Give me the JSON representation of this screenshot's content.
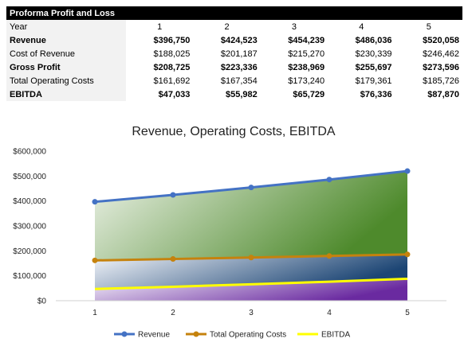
{
  "table": {
    "title": "Proforma Profit and Loss",
    "header_label": "Year",
    "years": [
      "1",
      "2",
      "3",
      "4",
      "5"
    ],
    "rows": [
      {
        "label": "Revenue",
        "bold": true,
        "values": [
          "$396,750",
          "$424,523",
          "$454,239",
          "$486,036",
          "$520,058"
        ]
      },
      {
        "label": "Cost of Revenue",
        "bold": false,
        "values": [
          "$188,025",
          "$201,187",
          "$215,270",
          "$230,339",
          "$246,462"
        ]
      },
      {
        "label": "Gross Profit",
        "bold": true,
        "values": [
          "$208,725",
          "$223,336",
          "$238,969",
          "$255,697",
          "$273,596"
        ]
      },
      {
        "label": "Total Operating Costs",
        "bold": false,
        "values": [
          "$161,692",
          "$167,354",
          "$173,240",
          "$179,361",
          "$185,726"
        ]
      },
      {
        "label": "EBITDA",
        "bold": true,
        "values": [
          "$47,033",
          "$55,982",
          "$65,729",
          "$76,336",
          "$87,870"
        ]
      }
    ]
  },
  "chart_data": {
    "type": "line",
    "title": "Revenue, Operating Costs, EBITDA",
    "x": [
      1,
      2,
      3,
      4,
      5
    ],
    "categories": [
      "1",
      "2",
      "3",
      "4",
      "5"
    ],
    "ylim": [
      0,
      600000
    ],
    "yticks": [
      0,
      100000,
      200000,
      300000,
      400000,
      500000,
      600000
    ],
    "ytick_labels": [
      "$0",
      "$100,000",
      "$200,000",
      "$300,000",
      "$400,000",
      "$500,000",
      "$600,000"
    ],
    "grid": false,
    "legend_position": "bottom",
    "series": [
      {
        "name": "Revenue",
        "values": [
          396750,
          424523,
          454239,
          486036,
          520058
        ],
        "color": "#4472c4",
        "markers": true
      },
      {
        "name": "Total Operating Costs",
        "values": [
          161692,
          167354,
          173240,
          179361,
          185726
        ],
        "color": "#c5820d",
        "markers": true
      },
      {
        "name": "EBITDA",
        "values": [
          47033,
          55982,
          65729,
          76336,
          87870
        ],
        "color": "#ffff00",
        "markers": false
      }
    ],
    "fill_colors": {
      "revenue_band_light": "#eef3ea",
      "revenue_band_dark": "#4e8a2c",
      "costs_band_light": "#f4f6fb",
      "costs_band_dark": "#1c4574",
      "ebitda_band_light": "#f2eef8",
      "ebitda_band_dark": "#6a2aa0"
    }
  }
}
